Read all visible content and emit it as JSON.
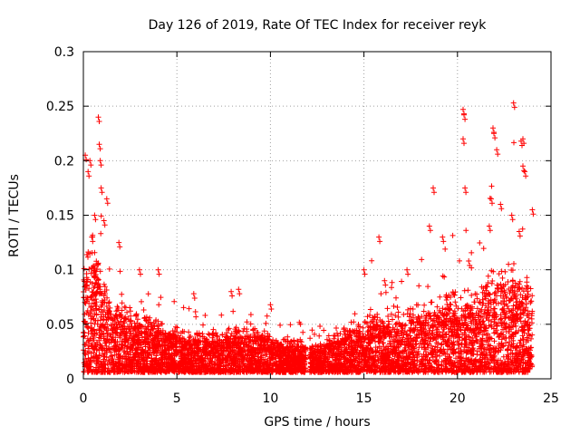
{
  "chart_data": {
    "type": "scatter",
    "title": "Day 126 of 2019, Rate Of TEC Index for receiver reyk",
    "xlabel": "GPS time / hours",
    "ylabel": "ROTI / TECUs",
    "xlim": [
      0,
      25
    ],
    "ylim": [
      0,
      0.3
    ],
    "xticks": [
      0,
      5,
      10,
      15,
      20,
      25
    ],
    "xtick_labels": [
      "0",
      "5",
      "10",
      "15",
      "20",
      "25"
    ],
    "yticks": [
      0,
      0.05,
      0.1,
      0.15,
      0.2,
      0.25,
      0.3
    ],
    "ytick_labels": [
      "0",
      "0.05",
      "0.1",
      "0.15",
      "0.2",
      "0.25",
      "0.3"
    ],
    "grid": true,
    "marker": "plus",
    "color": "#ff0000",
    "data_gap_hours": [
      11.9,
      12.1
    ],
    "series": [
      {
        "name": "ROTI",
        "envelope": [
          {
            "x": 0.0,
            "typical_max": 0.09,
            "peak": 0.2
          },
          {
            "x": 0.5,
            "typical_max": 0.11,
            "peak": 0.2
          },
          {
            "x": 1.0,
            "typical_max": 0.08,
            "peak": 0.24
          },
          {
            "x": 1.5,
            "typical_max": 0.06,
            "peak": 0.165
          },
          {
            "x": 2.0,
            "typical_max": 0.06,
            "peak": 0.12
          },
          {
            "x": 3.0,
            "typical_max": 0.05,
            "peak": 0.1
          },
          {
            "x": 4.0,
            "typical_max": 0.045,
            "peak": 0.1
          },
          {
            "x": 5.0,
            "typical_max": 0.04,
            "peak": 0.08
          },
          {
            "x": 6.0,
            "typical_max": 0.035,
            "peak": 0.07
          },
          {
            "x": 7.0,
            "typical_max": 0.035,
            "peak": 0.06
          },
          {
            "x": 8.0,
            "typical_max": 0.04,
            "peak": 0.08
          },
          {
            "x": 9.0,
            "typical_max": 0.04,
            "peak": 0.07
          },
          {
            "x": 10.0,
            "typical_max": 0.035,
            "peak": 0.07
          },
          {
            "x": 11.0,
            "typical_max": 0.03,
            "peak": 0.06
          },
          {
            "x": 12.5,
            "typical_max": 0.03,
            "peak": 0.055
          },
          {
            "x": 13.5,
            "typical_max": 0.035,
            "peak": 0.06
          },
          {
            "x": 14.5,
            "typical_max": 0.045,
            "peak": 0.08
          },
          {
            "x": 15.5,
            "typical_max": 0.05,
            "peak": 0.13
          },
          {
            "x": 16.5,
            "typical_max": 0.05,
            "peak": 0.11
          },
          {
            "x": 17.5,
            "typical_max": 0.055,
            "peak": 0.1
          },
          {
            "x": 18.5,
            "typical_max": 0.06,
            "peak": 0.175
          },
          {
            "x": 19.5,
            "typical_max": 0.065,
            "peak": 0.13
          },
          {
            "x": 20.3,
            "typical_max": 0.07,
            "peak": 0.245
          },
          {
            "x": 21.0,
            "typical_max": 0.065,
            "peak": 0.12
          },
          {
            "x": 21.9,
            "typical_max": 0.085,
            "peak": 0.23
          },
          {
            "x": 22.5,
            "typical_max": 0.09,
            "peak": 0.15
          },
          {
            "x": 23.0,
            "typical_max": 0.09,
            "peak": 0.25
          },
          {
            "x": 23.5,
            "typical_max": 0.085,
            "peak": 0.22
          },
          {
            "x": 24.0,
            "typical_max": 0.07,
            "peak": 0.16
          }
        ],
        "spikes": [
          {
            "x": 0.1,
            "y": 0.205
          },
          {
            "x": 0.25,
            "y": 0.19
          },
          {
            "x": 0.35,
            "y": 0.2
          },
          {
            "x": 0.8,
            "y": 0.24
          },
          {
            "x": 0.85,
            "y": 0.215
          },
          {
            "x": 0.9,
            "y": 0.2
          },
          {
            "x": 0.95,
            "y": 0.175
          },
          {
            "x": 1.25,
            "y": 0.165
          },
          {
            "x": 1.1,
            "y": 0.145
          },
          {
            "x": 0.6,
            "y": 0.15
          },
          {
            "x": 0.45,
            "y": 0.13
          },
          {
            "x": 1.9,
            "y": 0.125
          },
          {
            "x": 3.0,
            "y": 0.1
          },
          {
            "x": 4.0,
            "y": 0.1
          },
          {
            "x": 5.9,
            "y": 0.078
          },
          {
            "x": 7.9,
            "y": 0.08
          },
          {
            "x": 8.3,
            "y": 0.082
          },
          {
            "x": 10.0,
            "y": 0.068
          },
          {
            "x": 15.8,
            "y": 0.13
          },
          {
            "x": 15.0,
            "y": 0.1
          },
          {
            "x": 16.1,
            "y": 0.09
          },
          {
            "x": 17.3,
            "y": 0.1
          },
          {
            "x": 18.7,
            "y": 0.175
          },
          {
            "x": 18.5,
            "y": 0.14
          },
          {
            "x": 19.2,
            "y": 0.13
          },
          {
            "x": 20.3,
            "y": 0.247
          },
          {
            "x": 20.35,
            "y": 0.242
          },
          {
            "x": 20.3,
            "y": 0.22
          },
          {
            "x": 20.4,
            "y": 0.175
          },
          {
            "x": 20.6,
            "y": 0.108
          },
          {
            "x": 21.9,
            "y": 0.23
          },
          {
            "x": 21.95,
            "y": 0.225
          },
          {
            "x": 22.1,
            "y": 0.21
          },
          {
            "x": 21.8,
            "y": 0.165
          },
          {
            "x": 23.0,
            "y": 0.253
          },
          {
            "x": 23.5,
            "y": 0.22
          },
          {
            "x": 23.4,
            "y": 0.218
          },
          {
            "x": 23.5,
            "y": 0.195
          },
          {
            "x": 23.6,
            "y": 0.19
          },
          {
            "x": 22.3,
            "y": 0.16
          },
          {
            "x": 22.9,
            "y": 0.15
          },
          {
            "x": 24.0,
            "y": 0.155
          },
          {
            "x": 21.7,
            "y": 0.14
          },
          {
            "x": 23.3,
            "y": 0.135
          }
        ]
      }
    ]
  }
}
